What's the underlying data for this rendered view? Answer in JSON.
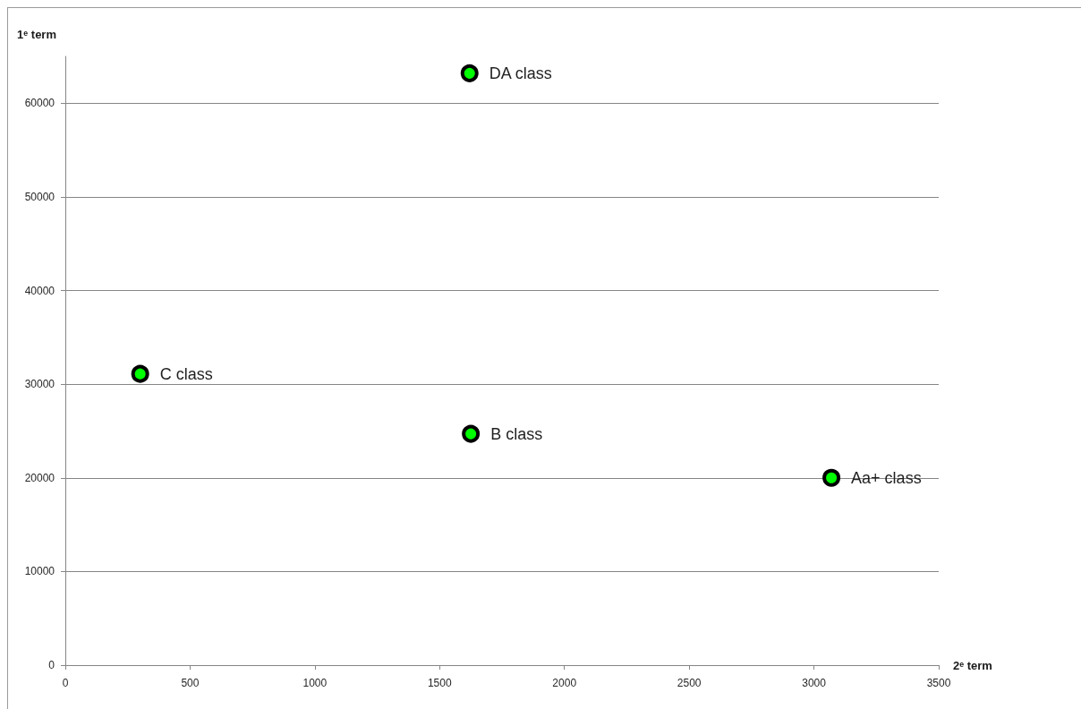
{
  "chart_data": {
    "type": "scatter",
    "xlabel": "2ᵉ term",
    "ylabel": "1ᵉ term",
    "xlim": [
      0,
      3500
    ],
    "xticks": [
      0,
      500,
      1000,
      1500,
      2000,
      2500,
      3000,
      3500
    ],
    "ylim": [
      0,
      65000
    ],
    "yticks": [
      0,
      10000,
      20000,
      30000,
      40000,
      50000,
      60000
    ],
    "grid": "y",
    "marker": "circle",
    "series": [
      {
        "name": "DA class",
        "color": "#00ff00",
        "x": [
          1620
        ],
        "values": [
          63200
        ]
      },
      {
        "name": "C class",
        "color": "#00ff00",
        "x": [
          300
        ],
        "values": [
          31100
        ]
      },
      {
        "name": "B class",
        "color": "#00ff00",
        "x": [
          1625
        ],
        "values": [
          24700
        ]
      },
      {
        "name": "Aa+ class",
        "color": "#00ff00",
        "x": [
          3070
        ],
        "values": [
          20000
        ]
      }
    ]
  }
}
